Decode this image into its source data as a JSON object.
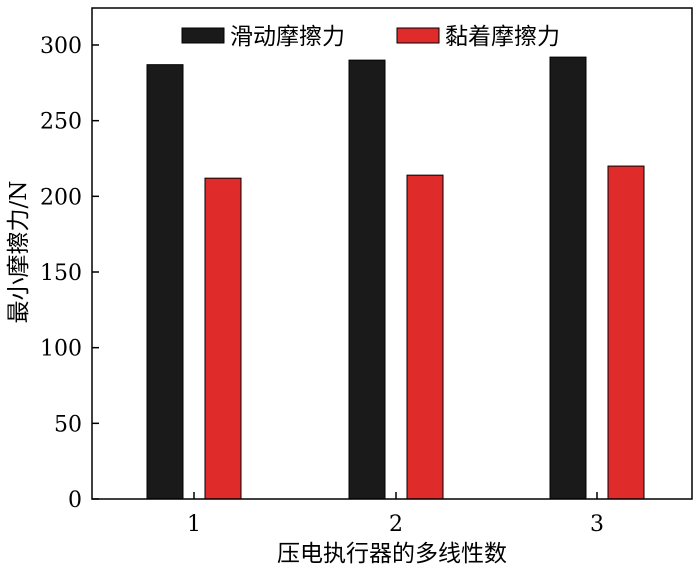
{
  "chart_data": {
    "type": "bar",
    "categories": [
      "1",
      "2",
      "3"
    ],
    "series": [
      {
        "name": "滑动摩擦力",
        "values": [
          287,
          290,
          292
        ],
        "color": "#1a1a1a"
      },
      {
        "name": "黏着摩擦力",
        "values": [
          212,
          214,
          220
        ],
        "color": "#e02b2b"
      }
    ],
    "xlabel": "压电执行器的多线性数",
    "ylabel": "最小摩擦力/N",
    "ylim": [
      0,
      300
    ],
    "yticks": [
      "0",
      "50",
      "100",
      "150",
      "200",
      "250",
      "300"
    ],
    "grid": false,
    "legend_position": "top"
  }
}
